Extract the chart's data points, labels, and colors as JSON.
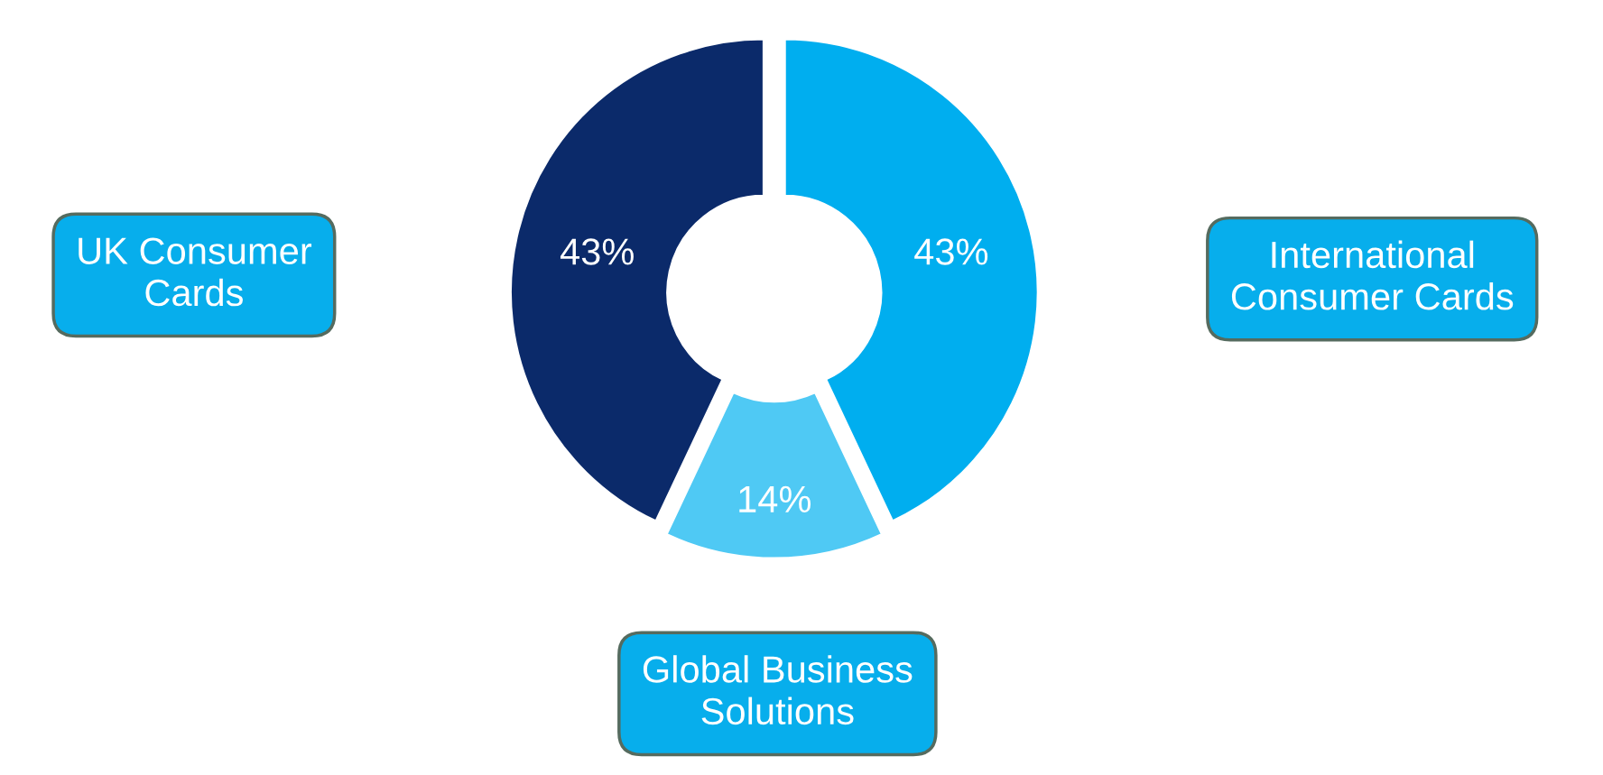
{
  "chart_data": {
    "type": "donut",
    "categories": [
      "International\nConsumer Cards",
      "Global Business\nSolutions",
      "UK Consumer\nCards"
    ],
    "values": [
      43,
      14,
      43
    ],
    "colors": [
      "#00aeef",
      "#4fc9f4",
      "#0b2a6a"
    ],
    "value_labels": [
      "43%",
      "14%",
      "43%"
    ]
  }
}
